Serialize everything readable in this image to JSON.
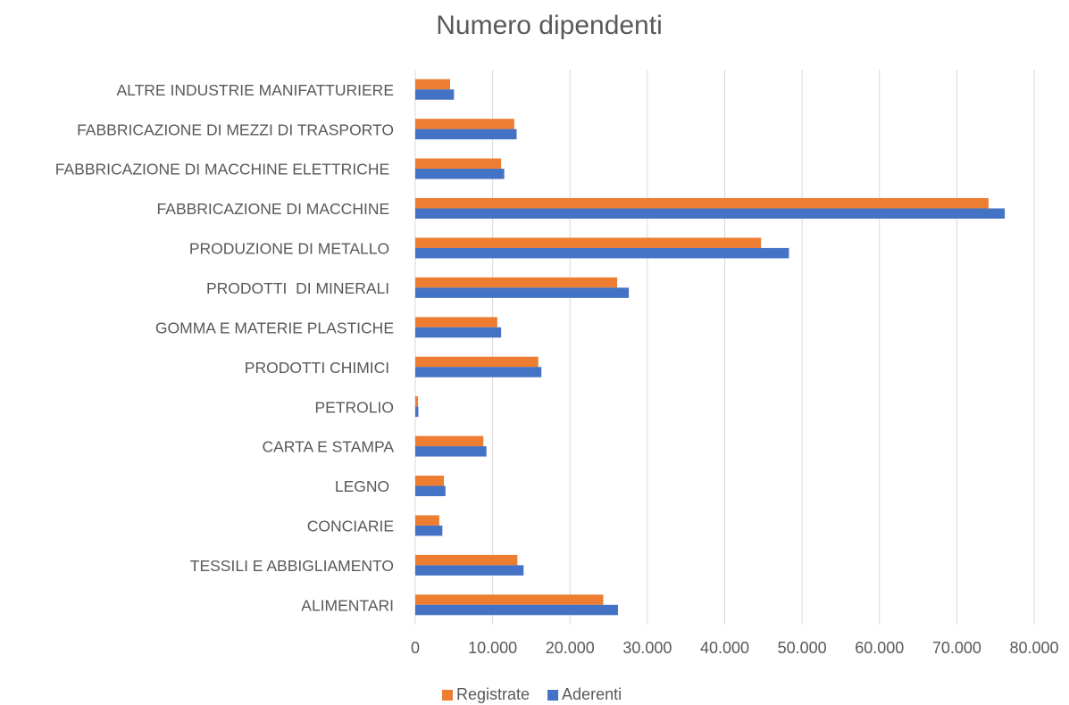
{
  "chart_data": {
    "type": "hbar",
    "title": "Numero dipendenti",
    "categories": [
      "ALIMENTARI",
      "TESSILI E ABBIGLIAMENTO",
      "CONCIARIE",
      "LEGNO ",
      "CARTA E STAMPA",
      "PETROLIO",
      "PRODOTTI CHIMICI ",
      "GOMMA E MATERIE PLASTICHE",
      "PRODOTTI  DI MINERALI ",
      "PRODUZIONE DI METALLO ",
      "FABBRICAZIONE DI MACCHINE ",
      "FABBRICAZIONE DI MACCHINE ELETTRICHE ",
      "FABBRICAZIONE DI MEZZI DI TRASPORTO",
      "ALTRE INDUSTRIE MANIFATTURIERE"
    ],
    "series": [
      {
        "name": "Registrate",
        "color": "#ed7d31",
        "values": [
          24300,
          13200,
          3100,
          3700,
          8800,
          350,
          15900,
          10600,
          26100,
          44700,
          74100,
          11100,
          12800,
          4500
        ]
      },
      {
        "name": "Aderenti",
        "color": "#4472c4",
        "values": [
          26200,
          14000,
          3500,
          3900,
          9200,
          400,
          16300,
          11100,
          27600,
          48300,
          76200,
          11500,
          13100,
          5000
        ]
      }
    ],
    "xlim": [
      0,
      80000
    ],
    "xticks": [
      0,
      {
        "value": 10000,
        "label": "10.000"
      },
      {
        "value": 20000,
        "label": "20.000"
      },
      {
        "value": 30000,
        "label": "30.000"
      },
      {
        "value": 40000,
        "label": "40.000"
      },
      {
        "value": 50000,
        "label": "50.000"
      },
      {
        "value": 60000,
        "label": "60.000"
      },
      {
        "value": 70000,
        "label": "70.000"
      },
      {
        "value": 80000,
        "label": "80.000"
      }
    ],
    "grid": true,
    "legend": "bottom"
  }
}
